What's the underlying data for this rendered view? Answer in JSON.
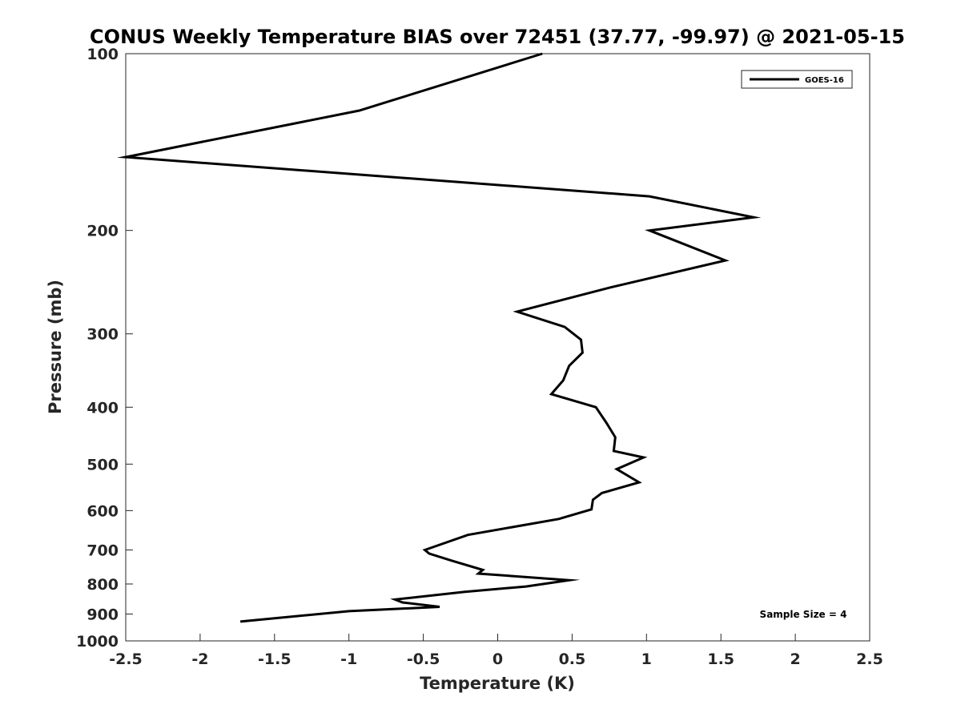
{
  "chart_data": {
    "type": "line",
    "title": "CONUS Weekly Temperature BIAS over 72451 (37.77, -99.97) @ 2021-05-15",
    "xlabel": "Temperature (K)",
    "ylabel": "Pressure (mb)",
    "xlim": [
      -2.5,
      2.5
    ],
    "ylim": [
      100,
      1000
    ],
    "y_scale": "log",
    "y_reversed": true,
    "x_ticks": [
      -2.5,
      -2,
      -1.5,
      -1,
      -0.5,
      0,
      0.5,
      1,
      1.5,
      2,
      2.5
    ],
    "x_tick_labels": [
      "-2.5",
      "-2",
      "-1.5",
      "-1",
      "-0.5",
      "0",
      "0.5",
      "1",
      "1.5",
      "2",
      "2.5"
    ],
    "y_ticks": [
      100,
      200,
      300,
      400,
      500,
      600,
      700,
      800,
      900,
      1000
    ],
    "y_tick_labels": [
      "100",
      "200",
      "300",
      "400",
      "500",
      "600",
      "700",
      "800",
      "900",
      "1000"
    ],
    "grid": false,
    "legend_position": "top-right",
    "series": [
      {
        "name": "GOES-16",
        "color": "#000000",
        "x": [
          0.3,
          -0.93,
          -2.5,
          1.02,
          1.72,
          1.02,
          1.53,
          0.76,
          0.13,
          0.45,
          0.56,
          0.57,
          0.48,
          0.44,
          0.36,
          0.66,
          0.73,
          0.79,
          0.78,
          0.98,
          0.8,
          0.95,
          0.7,
          0.64,
          0.63,
          0.41,
          -0.2,
          -0.49,
          -0.46,
          -0.31,
          -0.1,
          -0.13,
          0.48,
          0.19,
          -0.22,
          -0.69,
          -0.64,
          -0.39,
          -1.0,
          -1.73
        ],
        "y": [
          100,
          125,
          150,
          175,
          190,
          200,
          225,
          250,
          275,
          292,
          307,
          323,
          340,
          360,
          380,
          400,
          425,
          450,
          475,
          487,
          510,
          537,
          560,
          575,
          597,
          620,
          660,
          700,
          710,
          730,
          757,
          768,
          788,
          808,
          825,
          850,
          860,
          875,
          890,
          927
        ]
      }
    ],
    "annotations": [
      "Sample Size = 4"
    ]
  }
}
